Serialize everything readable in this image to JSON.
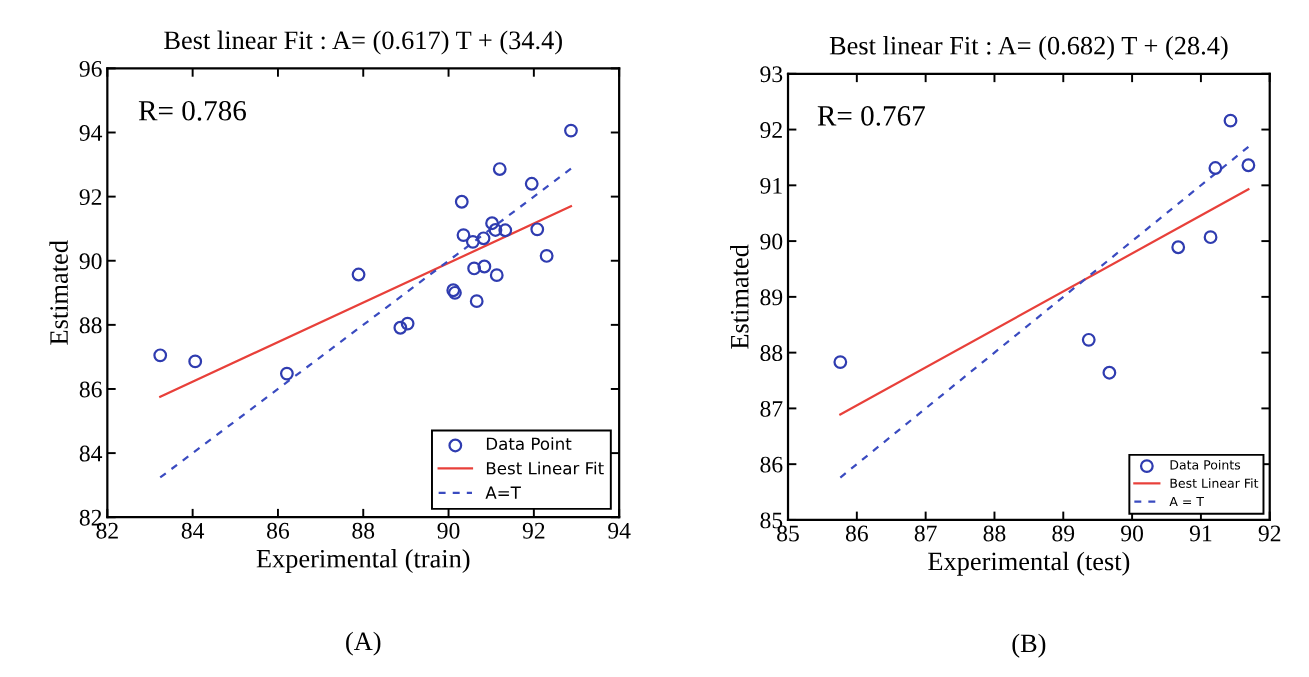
{
  "chart_data": [
    {
      "type": "scatter",
      "title": "Best linear Fit : A= (0.617) T + (34.4)",
      "xlabel": "Experimental (train)",
      "ylabel": "Estimated",
      "xlim": [
        82,
        94
      ],
      "xticks": [
        82,
        84,
        86,
        88,
        90,
        92,
        94
      ],
      "ylim": [
        82,
        96
      ],
      "yticks": [
        82,
        84,
        86,
        88,
        90,
        92,
        94,
        96
      ],
      "grid": false,
      "legend": "bottom right",
      "annotations": [
        "R= 0.786",
        "(A)"
      ],
      "series": [
        {
          "name": "Data Point",
          "marker": "circle",
          "color": "#2f3cb0",
          "x": [
            83.24,
            84.06,
            86.21,
            87.89,
            88.87,
            89.04,
            90.11,
            90.15,
            90.66,
            90.6,
            90.84,
            91.13,
            90.31,
            90.35,
            90.57,
            90.82,
            91.02,
            91.1,
            91.33,
            91.2,
            91.95,
            92.08,
            92.3,
            92.87
          ],
          "values": [
            87.05,
            86.86,
            86.48,
            89.57,
            87.91,
            88.04,
            89.08,
            89.0,
            88.74,
            89.76,
            89.82,
            89.55,
            91.84,
            90.8,
            90.59,
            90.7,
            91.17,
            90.96,
            90.95,
            92.86,
            92.4,
            90.98,
            90.15,
            94.06
          ]
        },
        {
          "name": "Best Linear Fit",
          "type": "line",
          "line_style": "solid",
          "color": "#e8403a",
          "x": [
            83.24,
            92.87
          ],
          "values": [
            85.76,
            91.7
          ]
        },
        {
          "name": "A=T",
          "type": "line",
          "line_style": "dashed",
          "color": "#3a4bc0",
          "x": [
            83.24,
            92.87
          ],
          "values": [
            83.24,
            92.87
          ]
        }
      ]
    },
    {
      "type": "scatter",
      "title": "Best linear Fit : A= (0.682) T + (28.4)",
      "xlabel": "Experimental (test)",
      "ylabel": "Estimated",
      "xlim": [
        85,
        92
      ],
      "xticks": [
        85,
        86,
        87,
        88,
        89,
        90,
        91,
        92
      ],
      "ylim": [
        85,
        93
      ],
      "yticks": [
        85,
        86,
        87,
        88,
        89,
        90,
        91,
        92,
        93
      ],
      "grid": false,
      "legend": "bottom right",
      "annotations": [
        "R= 0.767",
        "(B)"
      ],
      "series": [
        {
          "name": "Data Points",
          "marker": "circle",
          "color": "#2f3cb0",
          "x": [
            85.76,
            89.37,
            89.67,
            90.67,
            91.14,
            91.21,
            91.43,
            91.69
          ],
          "values": [
            87.83,
            88.23,
            87.64,
            89.89,
            90.07,
            91.31,
            92.16,
            91.36
          ]
        },
        {
          "name": "Best Linear Fit",
          "type": "line",
          "line_style": "solid",
          "color": "#e8403a",
          "x": [
            85.76,
            91.69
          ],
          "values": [
            86.89,
            90.93
          ]
        },
        {
          "name": "A = T",
          "type": "line",
          "line_style": "dashed",
          "color": "#3a4bc0",
          "x": [
            85.76,
            91.69
          ],
          "values": [
            85.76,
            91.69
          ]
        }
      ]
    }
  ]
}
